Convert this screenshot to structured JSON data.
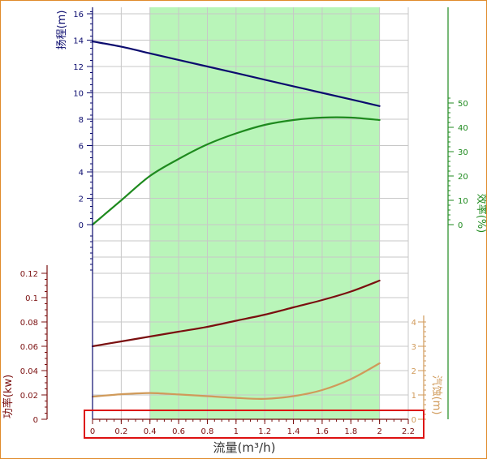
{
  "chart_data": [
    {
      "type": "line",
      "title": "",
      "xlabel": "流量(m³/h)",
      "xlim": [
        0,
        2.2
      ],
      "x_ticks": [
        "0",
        "0.2",
        "0.4",
        "0.6",
        "0.8",
        "1",
        "1.2",
        "1.4",
        "1.6",
        "1.8",
        "2",
        "2.2"
      ],
      "grid": true,
      "highlight_band": {
        "x": [
          0.4,
          2.0
        ],
        "color": "#b9f5b9"
      },
      "series": [
        {
          "name": "扬程(m)",
          "axis": "left",
          "color": "#0b0b6e",
          "x": [
            0,
            0.2,
            0.4,
            0.6,
            0.8,
            1.0,
            1.2,
            1.4,
            1.6,
            1.8,
            2.0
          ],
          "y": [
            13.9,
            13.5,
            13.0,
            12.5,
            12.0,
            11.5,
            11.0,
            10.5,
            10.0,
            9.5,
            9.0
          ]
        },
        {
          "name": "效率(%)",
          "axis": "right",
          "color": "#1e8a1e",
          "x": [
            0,
            0.2,
            0.4,
            0.6,
            0.8,
            1.0,
            1.2,
            1.4,
            1.6,
            1.8,
            2.0
          ],
          "y": [
            0,
            10,
            20,
            27,
            33,
            37.5,
            41,
            43,
            44,
            44,
            43
          ]
        }
      ],
      "left_axis": {
        "label": "扬程(m)",
        "ylim": [
          0,
          16
        ],
        "ticks": [
          "0",
          "2",
          "4",
          "6",
          "8",
          "10",
          "12",
          "14",
          "16"
        ],
        "color": "#0b0b6e"
      },
      "right_axis": {
        "label": "效率(%)",
        "ylim": [
          0,
          50
        ],
        "ticks": [
          "0",
          "10",
          "20",
          "30",
          "40",
          "50"
        ],
        "color": "#1e8a1e"
      }
    },
    {
      "type": "line",
      "title": "",
      "xlabel": "流量(m³/h)",
      "xlim": [
        0,
        2.2
      ],
      "grid": true,
      "series": [
        {
          "name": "功率(kw)",
          "axis": "left",
          "color": "#7a0f0f",
          "x": [
            0,
            0.2,
            0.4,
            0.6,
            0.8,
            1.0,
            1.2,
            1.4,
            1.6,
            1.8,
            2.0
          ],
          "y": [
            0.06,
            0.064,
            0.068,
            0.072,
            0.076,
            0.081,
            0.086,
            0.092,
            0.098,
            0.105,
            0.114
          ]
        },
        {
          "name": "汽蚀(m)",
          "axis": "right",
          "color": "#d09a5a",
          "x": [
            0,
            0.2,
            0.4,
            0.6,
            0.8,
            1.0,
            1.2,
            1.4,
            1.6,
            1.8,
            2.0
          ],
          "y": [
            0.93,
            1.03,
            1.08,
            1.02,
            0.95,
            0.88,
            0.84,
            0.95,
            1.2,
            1.65,
            2.3
          ]
        }
      ],
      "left_axis": {
        "label": "功率(kw)",
        "ylim": [
          0,
          0.12
        ],
        "ticks": [
          "0",
          "0.02",
          "0.04",
          "0.06",
          "0.08",
          "0.1",
          "0.12"
        ],
        "color": "#7a0f0f"
      },
      "right_axis": {
        "label": "汽蚀(m)",
        "ylim": [
          0,
          4
        ],
        "ticks": [
          "0",
          "1",
          "2",
          "3",
          "4"
        ],
        "color": "#d09a5a"
      }
    }
  ]
}
